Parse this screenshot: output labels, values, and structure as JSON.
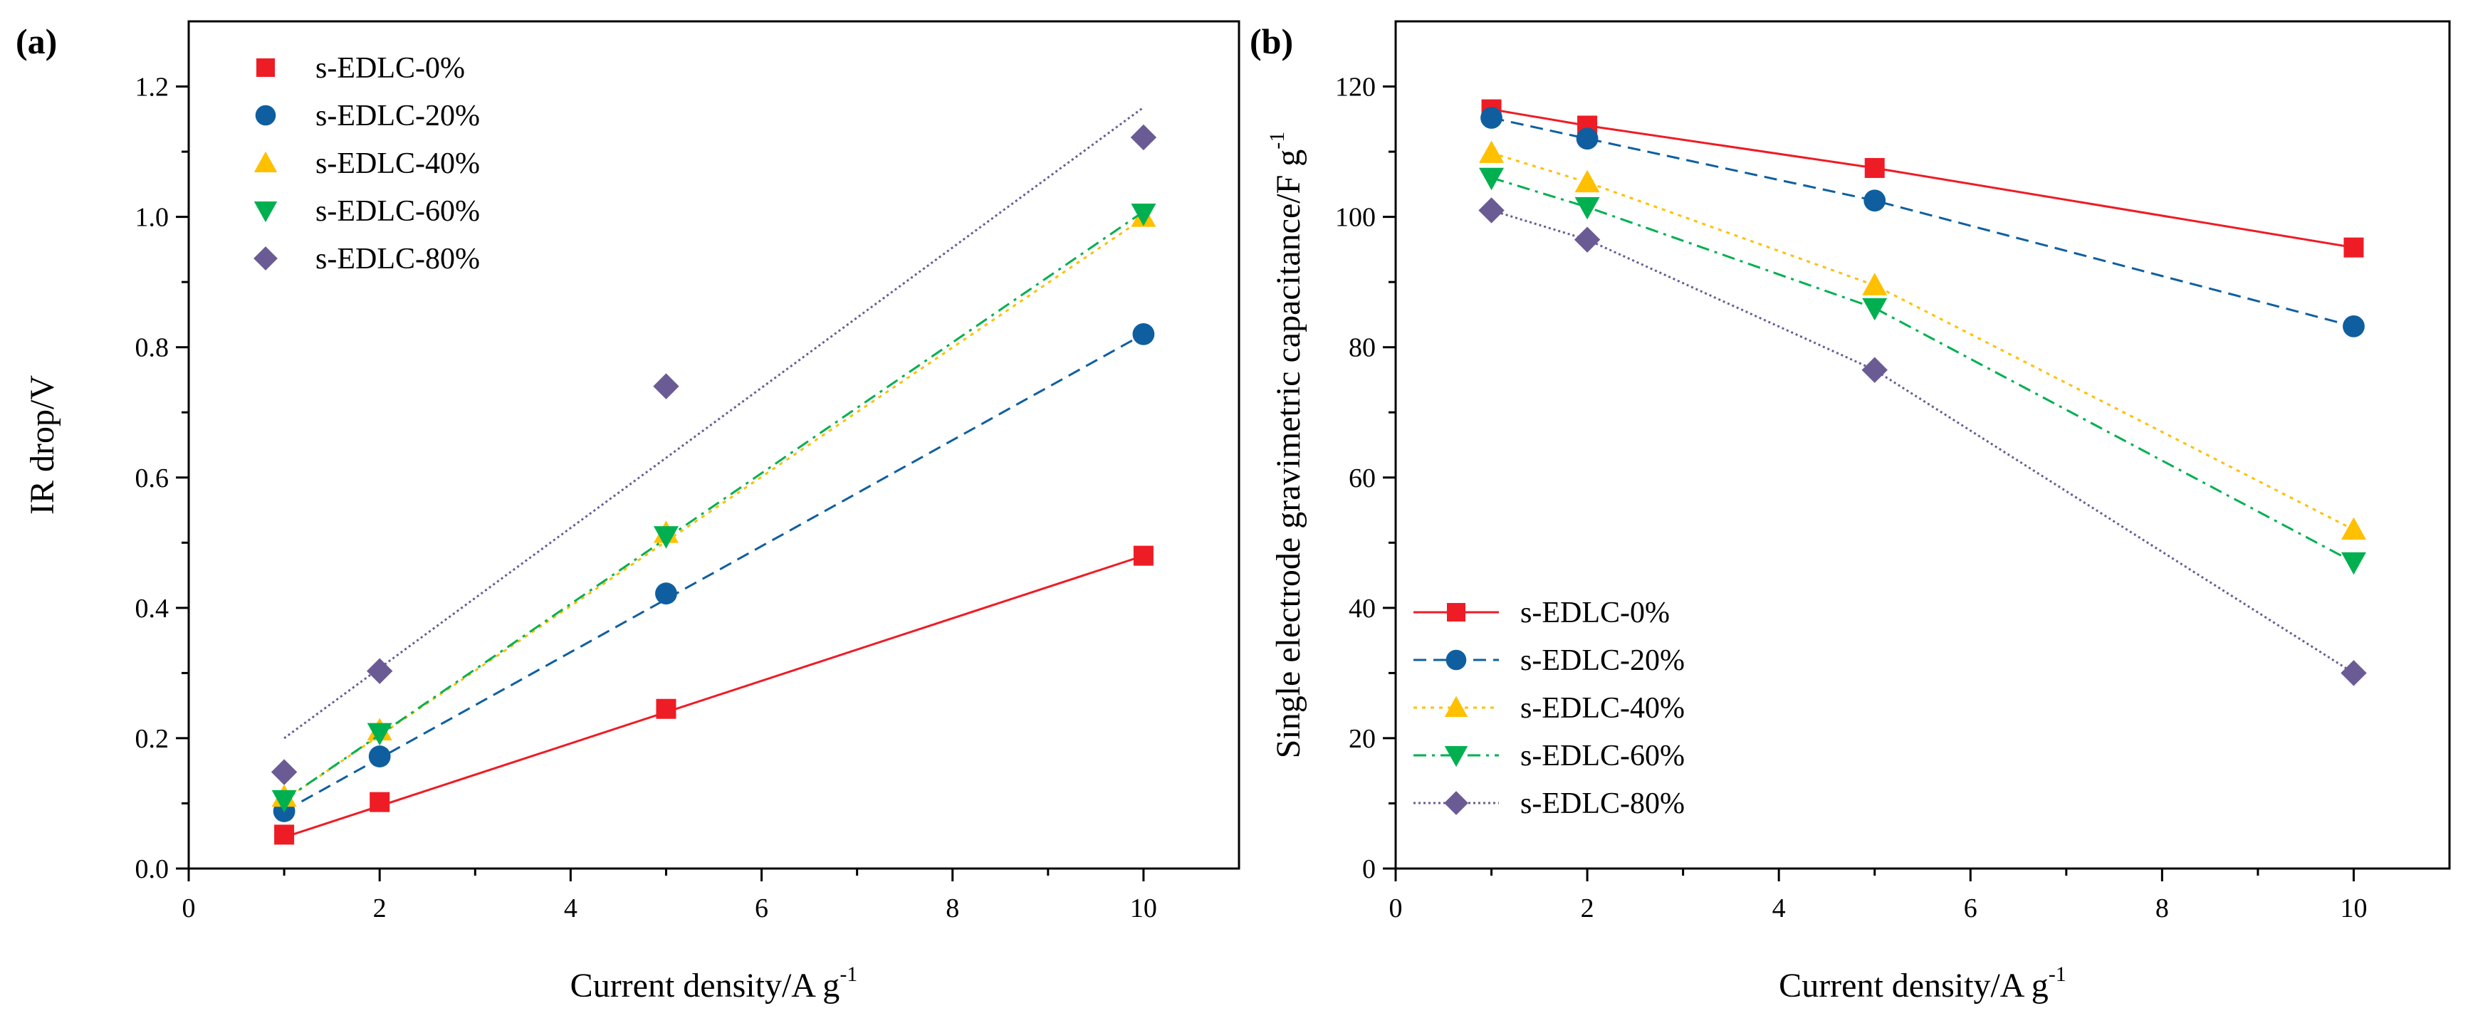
{
  "chart_data": [
    {
      "type": "scatter",
      "panel_label": "(a)",
      "xlabel": "Current density/A g",
      "xlabel_sup": "-1",
      "ylabel": "IR drop/V",
      "xlim": [
        0,
        11
      ],
      "ylim": [
        0,
        1.3
      ],
      "xticks": [
        0,
        2,
        4,
        6,
        8,
        10
      ],
      "yticks": [
        0.0,
        0.2,
        0.4,
        0.6,
        0.8,
        1.0,
        1.2
      ],
      "ytick_labels": [
        "0.0",
        "0.2",
        "0.4",
        "0.6",
        "0.8",
        "1.0",
        "1.2"
      ],
      "legend_position": "top-left",
      "series": [
        {
          "name": "s-EDLC-0%",
          "color": "#ee1c25",
          "marker": "square",
          "dash": "solid",
          "x": [
            1,
            2,
            5,
            10
          ],
          "y": [
            0.052,
            0.102,
            0.245,
            0.48
          ],
          "fit": [
            [
              1,
              0.048
            ],
            [
              10,
              0.48
            ]
          ]
        },
        {
          "name": "s-EDLC-20%",
          "color": "#0f5fa0",
          "marker": "circle",
          "dash": "dashed",
          "x": [
            1,
            2,
            5,
            10
          ],
          "y": [
            0.088,
            0.172,
            0.422,
            0.82
          ],
          "fit": [
            [
              1,
              0.088
            ],
            [
              10,
              0.82
            ]
          ]
        },
        {
          "name": "s-EDLC-40%",
          "color": "#ffc000",
          "marker": "triangle",
          "dash": "dotted",
          "x": [
            1,
            2,
            5,
            10
          ],
          "y": [
            0.11,
            0.212,
            0.515,
            1.0
          ],
          "fit": [
            [
              1,
              0.105
            ],
            [
              10,
              0.998
            ]
          ]
        },
        {
          "name": "s-EDLC-60%",
          "color": "#00b050",
          "marker": "tri-down",
          "dash": "dash-dot",
          "x": [
            1,
            2,
            5,
            10
          ],
          "y": [
            0.105,
            0.208,
            0.51,
            1.005
          ],
          "fit": [
            [
              1,
              0.105
            ],
            [
              10,
              1.008
            ]
          ]
        },
        {
          "name": "s-EDLC-80%",
          "color": "#6b5b95",
          "marker": "diamond",
          "dash": "fine-dot",
          "x": [
            1,
            2,
            5,
            10
          ],
          "y": [
            0.148,
            0.303,
            0.74,
            1.122
          ],
          "fit": [
            [
              1,
              0.2
            ],
            [
              10,
              1.168
            ]
          ]
        }
      ]
    },
    {
      "type": "line",
      "panel_label": "(b)",
      "xlabel": "Current density/A g",
      "xlabel_sup": "-1",
      "ylabel": "Single electrode gravimetric capacitance/F g",
      "ylabel_sup": "-1",
      "xlim": [
        0,
        11
      ],
      "ylim": [
        0,
        130
      ],
      "xticks": [
        0,
        2,
        4,
        6,
        8,
        10
      ],
      "yticks": [
        0,
        20,
        40,
        60,
        80,
        100,
        120
      ],
      "ytick_labels": [
        "0",
        "20",
        "40",
        "60",
        "80",
        "100",
        "120"
      ],
      "legend_position": "bottom-left",
      "series": [
        {
          "name": "s-EDLC-0%",
          "color": "#ee1c25",
          "marker": "square",
          "dash": "solid",
          "x": [
            1,
            2,
            5,
            10
          ],
          "y": [
            116.5,
            114,
            107.5,
            95.3
          ]
        },
        {
          "name": "s-EDLC-20%",
          "color": "#0f5fa0",
          "marker": "circle",
          "dash": "dashed",
          "x": [
            1,
            2,
            5,
            10
          ],
          "y": [
            115.2,
            112,
            102.5,
            83.2
          ]
        },
        {
          "name": "s-EDLC-40%",
          "color": "#ffc000",
          "marker": "triangle",
          "dash": "dotted",
          "x": [
            1,
            2,
            5,
            10
          ],
          "y": [
            109.8,
            105.3,
            89.5,
            52
          ]
        },
        {
          "name": "s-EDLC-60%",
          "color": "#00b050",
          "marker": "tri-down",
          "dash": "dash-dot",
          "x": [
            1,
            2,
            5,
            10
          ],
          "y": [
            106,
            101.5,
            86,
            47
          ]
        },
        {
          "name": "s-EDLC-80%",
          "color": "#6b5b95",
          "marker": "diamond",
          "dash": "fine-dot",
          "x": [
            1,
            2,
            5,
            10
          ],
          "y": [
            101,
            96.5,
            76.5,
            30
          ]
        }
      ]
    }
  ]
}
